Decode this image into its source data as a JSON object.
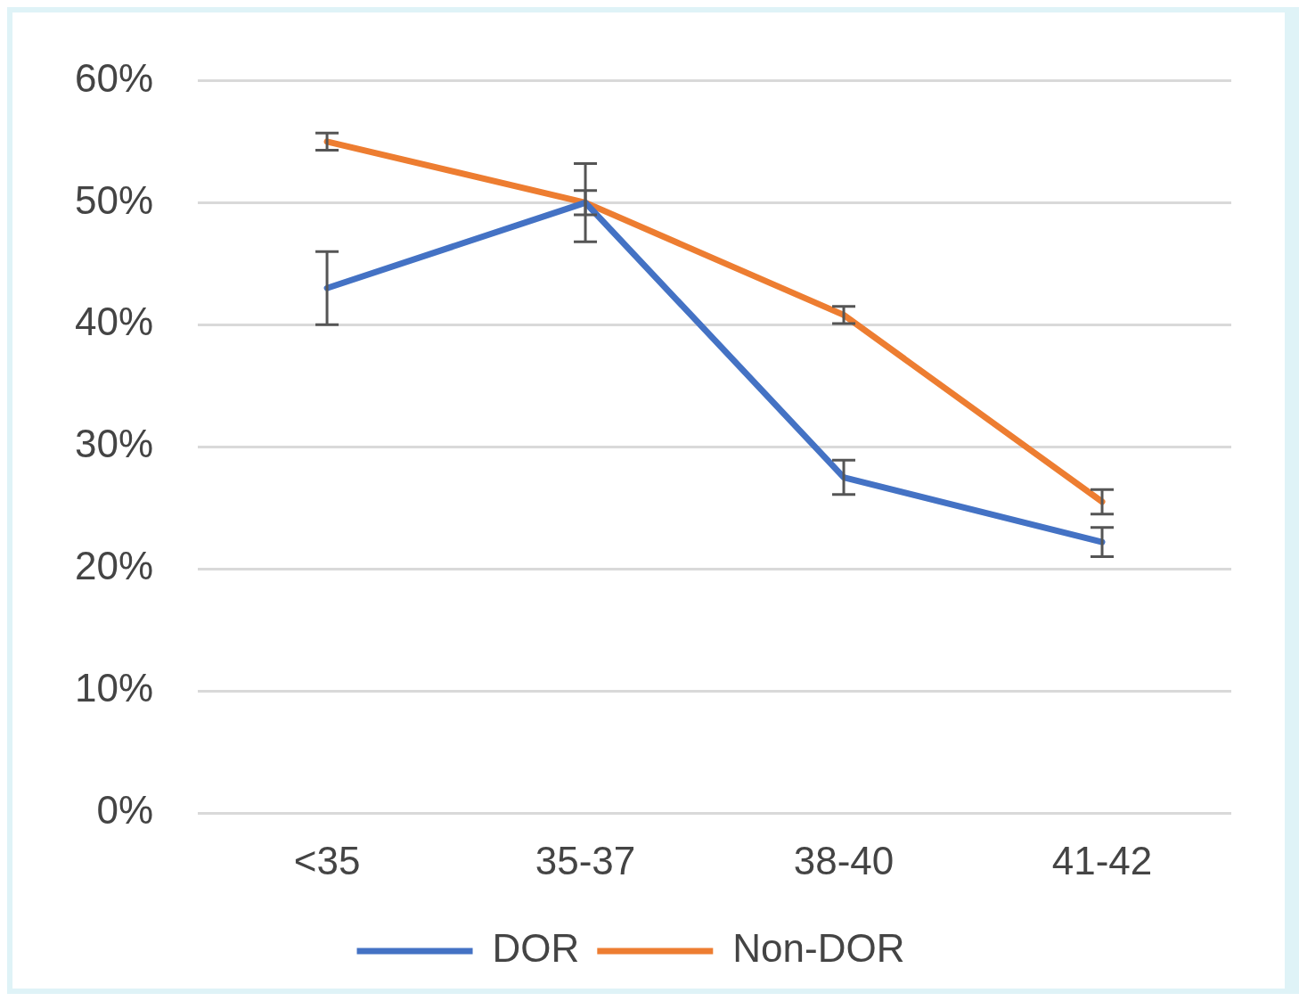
{
  "chart_data": {
    "type": "line",
    "categories": [
      "<35",
      "35-37",
      "38-40",
      "41-42"
    ],
    "series": [
      {
        "name": "DOR",
        "color": "#4472c4",
        "values": [
          43,
          50,
          27.5,
          22.2
        ],
        "errors": [
          3,
          3.2,
          1.4,
          1.2
        ]
      },
      {
        "name": "Non-DOR",
        "color": "#ed7d31",
        "values": [
          55,
          50,
          40.8,
          25.5
        ],
        "errors": [
          0.7,
          1,
          0.7,
          1
        ]
      }
    ],
    "ylim": [
      0,
      60
    ],
    "yticks": [
      {
        "value": 0,
        "label": "0%"
      },
      {
        "value": 10,
        "label": "10%"
      },
      {
        "value": 20,
        "label": "20%"
      },
      {
        "value": 30,
        "label": "30%"
      },
      {
        "value": 40,
        "label": "40%"
      },
      {
        "value": 50,
        "label": "50%"
      },
      {
        "value": 60,
        "label": "60%"
      }
    ],
    "grid": "y",
    "legend": "bottom",
    "marker": "none",
    "line_style": "solid"
  }
}
